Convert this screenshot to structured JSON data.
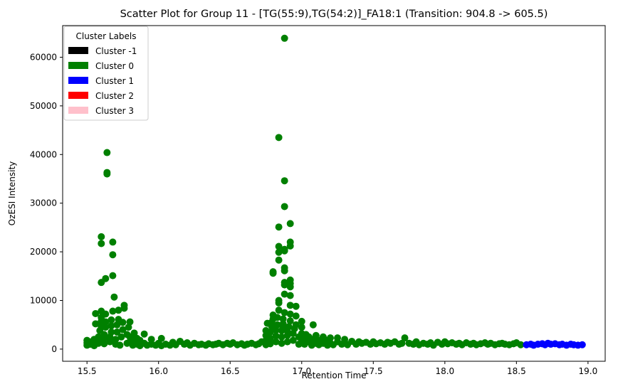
{
  "chart_data": {
    "type": "scatter",
    "title": "Scatter Plot for Group 11 - [TG(55:9),TG(54:2)]_FA18:1 (Transition: 904.8 -> 605.5)",
    "xlabel": "Retention Time",
    "ylabel": "OzESI Intensity",
    "xlim": [
      15.33,
      19.12
    ],
    "ylim": [
      -2500,
      66500
    ],
    "xticks": [
      15.5,
      16.0,
      16.5,
      17.0,
      17.5,
      18.0,
      18.5,
      19.0
    ],
    "xtick_labels": [
      "15.5",
      "16.0",
      "16.5",
      "17.0",
      "17.5",
      "18.0",
      "18.5",
      "19.0"
    ],
    "yticks": [
      0,
      10000,
      20000,
      30000,
      40000,
      50000,
      60000
    ],
    "ytick_labels": [
      "0",
      "10000",
      "20000",
      "30000",
      "40000",
      "50000",
      "60000"
    ],
    "grid": false,
    "legend": {
      "title": "Cluster Labels",
      "placement": "top-left",
      "entries": [
        {
          "label": "Cluster -1",
          "color": "#000000"
        },
        {
          "label": "Cluster 0",
          "color": "#008000"
        },
        {
          "label": "Cluster 1",
          "color": "#0000ff"
        },
        {
          "label": "Cluster 2",
          "color": "#ff0000"
        },
        {
          "label": "Cluster 3",
          "color": "#ffc0cb"
        }
      ]
    },
    "series": [
      {
        "name": "Cluster 0",
        "color": "#008000",
        "points": [
          [
            15.5,
            800
          ],
          [
            15.5,
            1300
          ],
          [
            15.5,
            1800
          ],
          [
            15.52,
            1000
          ],
          [
            15.53,
            1500
          ],
          [
            15.55,
            700
          ],
          [
            15.55,
            1100
          ],
          [
            15.55,
            2000
          ],
          [
            15.56,
            5200
          ],
          [
            15.56,
            7300
          ],
          [
            15.58,
            1200
          ],
          [
            15.58,
            2500
          ],
          [
            15.59,
            3800
          ],
          [
            15.6,
            1800
          ],
          [
            15.6,
            4600
          ],
          [
            15.6,
            5700
          ],
          [
            15.6,
            6500
          ],
          [
            15.6,
            7800
          ],
          [
            15.6,
            13700
          ],
          [
            15.6,
            21700
          ],
          [
            15.6,
            23100
          ],
          [
            15.62,
            1100
          ],
          [
            15.62,
            2200
          ],
          [
            15.62,
            3000
          ],
          [
            15.63,
            4500
          ],
          [
            15.63,
            5600
          ],
          [
            15.63,
            7200
          ],
          [
            15.63,
            14500
          ],
          [
            15.64,
            36300
          ],
          [
            15.64,
            36000
          ],
          [
            15.64,
            40400
          ],
          [
            15.66,
            1500
          ],
          [
            15.66,
            2500
          ],
          [
            15.67,
            3500
          ],
          [
            15.67,
            4800
          ],
          [
            15.67,
            6000
          ],
          [
            15.68,
            7800
          ],
          [
            15.68,
            15100
          ],
          [
            15.68,
            19400
          ],
          [
            15.68,
            22000
          ],
          [
            15.69,
            10700
          ],
          [
            15.7,
            1000
          ],
          [
            15.7,
            2000
          ],
          [
            15.71,
            3500
          ],
          [
            15.71,
            5000
          ],
          [
            15.72,
            6100
          ],
          [
            15.72,
            8000
          ],
          [
            15.73,
            800
          ],
          [
            15.74,
            2500
          ],
          [
            15.75,
            4000
          ],
          [
            15.75,
            5500
          ],
          [
            15.76,
            8400
          ],
          [
            15.76,
            9000
          ],
          [
            15.78,
            1200
          ],
          [
            15.78,
            3000
          ],
          [
            15.79,
            4500
          ],
          [
            15.8,
            1500
          ],
          [
            15.8,
            2500
          ],
          [
            15.8,
            5600
          ],
          [
            15.82,
            800
          ],
          [
            15.82,
            2000
          ],
          [
            15.83,
            3300
          ],
          [
            15.85,
            1000
          ],
          [
            15.85,
            2200
          ],
          [
            15.87,
            700
          ],
          [
            15.87,
            1800
          ],
          [
            15.9,
            1200
          ],
          [
            15.9,
            3100
          ],
          [
            15.92,
            800
          ],
          [
            15.95,
            1000
          ],
          [
            15.95,
            2000
          ],
          [
            15.98,
            800
          ],
          [
            16.0,
            1200
          ],
          [
            16.02,
            700
          ],
          [
            16.02,
            2200
          ],
          [
            16.05,
            1000
          ],
          [
            16.08,
            800
          ],
          [
            16.1,
            1400
          ],
          [
            16.12,
            900
          ],
          [
            16.15,
            1600
          ],
          [
            16.18,
            1000
          ],
          [
            16.2,
            1300
          ],
          [
            16.22,
            800
          ],
          [
            16.25,
            1200
          ],
          [
            16.28,
            900
          ],
          [
            16.3,
            1000
          ],
          [
            16.33,
            800
          ],
          [
            16.35,
            1100
          ],
          [
            16.38,
            900
          ],
          [
            16.4,
            1000
          ],
          [
            16.42,
            1200
          ],
          [
            16.45,
            900
          ],
          [
            16.48,
            1200
          ],
          [
            16.5,
            1000
          ],
          [
            16.52,
            1300
          ],
          [
            16.55,
            900
          ],
          [
            16.58,
            1100
          ],
          [
            16.6,
            800
          ],
          [
            16.62,
            1000
          ],
          [
            16.65,
            1200
          ],
          [
            16.68,
            900
          ],
          [
            16.7,
            1100
          ],
          [
            16.72,
            1500
          ],
          [
            16.75,
            900
          ],
          [
            16.75,
            1800
          ],
          [
            16.75,
            2800
          ],
          [
            16.75,
            3800
          ],
          [
            16.76,
            5300
          ],
          [
            16.78,
            1100
          ],
          [
            16.78,
            2200
          ],
          [
            16.78,
            3500
          ],
          [
            16.79,
            4700
          ],
          [
            16.79,
            5500
          ],
          [
            16.8,
            15600
          ],
          [
            16.8,
            15900
          ],
          [
            16.8,
            6200
          ],
          [
            16.8,
            7000
          ],
          [
            16.82,
            1500
          ],
          [
            16.82,
            2700
          ],
          [
            16.82,
            3900
          ],
          [
            16.83,
            5000
          ],
          [
            16.83,
            6500
          ],
          [
            16.84,
            8000
          ],
          [
            16.84,
            9500
          ],
          [
            16.84,
            10000
          ],
          [
            16.84,
            18300
          ],
          [
            16.84,
            19900
          ],
          [
            16.84,
            21100
          ],
          [
            16.84,
            25100
          ],
          [
            16.84,
            43500
          ],
          [
            16.86,
            1200
          ],
          [
            16.86,
            2500
          ],
          [
            16.86,
            3800
          ],
          [
            16.87,
            4500
          ],
          [
            16.87,
            5200
          ],
          [
            16.87,
            6200
          ],
          [
            16.88,
            7500
          ],
          [
            16.88,
            11300
          ],
          [
            16.88,
            13200
          ],
          [
            16.88,
            13700
          ],
          [
            16.88,
            16100
          ],
          [
            16.88,
            16700
          ],
          [
            16.88,
            20200
          ],
          [
            16.88,
            20500
          ],
          [
            16.88,
            29300
          ],
          [
            16.88,
            34600
          ],
          [
            16.88,
            63900
          ],
          [
            16.9,
            1500
          ],
          [
            16.9,
            2800
          ],
          [
            16.9,
            3700
          ],
          [
            16.91,
            4600
          ],
          [
            16.92,
            5800
          ],
          [
            16.92,
            7200
          ],
          [
            16.92,
            9000
          ],
          [
            16.92,
            11000
          ],
          [
            16.92,
            12800
          ],
          [
            16.92,
            13500
          ],
          [
            16.92,
            14200
          ],
          [
            16.92,
            21200
          ],
          [
            16.92,
            22000
          ],
          [
            16.92,
            25800
          ],
          [
            16.94,
            1800
          ],
          [
            16.94,
            3200
          ],
          [
            16.95,
            4200
          ],
          [
            16.96,
            5000
          ],
          [
            16.96,
            6800
          ],
          [
            16.96,
            8800
          ],
          [
            16.98,
            1000
          ],
          [
            16.98,
            2500
          ],
          [
            17.0,
            1500
          ],
          [
            17.0,
            3200
          ],
          [
            17.0,
            4500
          ],
          [
            17.0,
            5700
          ],
          [
            17.02,
            1000
          ],
          [
            17.02,
            2000
          ],
          [
            17.03,
            3000
          ],
          [
            17.05,
            1500
          ],
          [
            17.05,
            2500
          ],
          [
            17.07,
            800
          ],
          [
            17.08,
            2000
          ],
          [
            17.08,
            5000
          ],
          [
            17.1,
            1200
          ],
          [
            17.1,
            2800
          ],
          [
            17.12,
            900
          ],
          [
            17.12,
            1800
          ],
          [
            17.15,
            1200
          ],
          [
            17.15,
            2500
          ],
          [
            17.18,
            800
          ],
          [
            17.18,
            1800
          ],
          [
            17.2,
            1200
          ],
          [
            17.2,
            2300
          ],
          [
            17.22,
            900
          ],
          [
            17.25,
            1500
          ],
          [
            17.25,
            2300
          ],
          [
            17.28,
            1000
          ],
          [
            17.3,
            1400
          ],
          [
            17.3,
            2000
          ],
          [
            17.32,
            900
          ],
          [
            17.35,
            1600
          ],
          [
            17.38,
            1000
          ],
          [
            17.4,
            1500
          ],
          [
            17.42,
            1200
          ],
          [
            17.45,
            1400
          ],
          [
            17.48,
            1000
          ],
          [
            17.5,
            1500
          ],
          [
            17.52,
            1100
          ],
          [
            17.55,
            1300
          ],
          [
            17.58,
            1000
          ],
          [
            17.6,
            1400
          ],
          [
            17.62,
            1200
          ],
          [
            17.65,
            1500
          ],
          [
            17.68,
            1000
          ],
          [
            17.7,
            1200
          ],
          [
            17.72,
            2300
          ],
          [
            17.75,
            1200
          ],
          [
            17.78,
            1000
          ],
          [
            17.8,
            1500
          ],
          [
            17.82,
            900
          ],
          [
            17.85,
            1200
          ],
          [
            17.88,
            1000
          ],
          [
            17.9,
            1300
          ],
          [
            17.92,
            800
          ],
          [
            17.95,
            1400
          ],
          [
            17.98,
            1000
          ],
          [
            18.0,
            1500
          ],
          [
            18.02,
            1100
          ],
          [
            18.05,
            1300
          ],
          [
            18.08,
            1000
          ],
          [
            18.1,
            1200
          ],
          [
            18.12,
            900
          ],
          [
            18.15,
            1300
          ],
          [
            18.18,
            1000
          ],
          [
            18.2,
            1200
          ],
          [
            18.22,
            900
          ],
          [
            18.25,
            1100
          ],
          [
            18.28,
            1300
          ],
          [
            18.3,
            1000
          ],
          [
            18.32,
            1200
          ],
          [
            18.35,
            900
          ],
          [
            18.38,
            1100
          ],
          [
            18.4,
            1200
          ],
          [
            18.42,
            1000
          ],
          [
            18.45,
            900
          ],
          [
            18.48,
            1100
          ],
          [
            18.5,
            1300
          ],
          [
            18.53,
            900
          ]
        ]
      },
      {
        "name": "Cluster 1",
        "color": "#0000ff",
        "points": [
          [
            18.57,
            900
          ],
          [
            18.6,
            1000
          ],
          [
            18.62,
            800
          ],
          [
            18.65,
            1000
          ],
          [
            18.68,
            1100
          ],
          [
            18.7,
            900
          ],
          [
            18.72,
            1200
          ],
          [
            18.74,
            1000
          ],
          [
            18.77,
            1100
          ],
          [
            18.8,
            900
          ],
          [
            18.82,
            1000
          ],
          [
            18.85,
            800
          ],
          [
            18.88,
            1000
          ],
          [
            18.9,
            900
          ],
          [
            18.93,
            800
          ],
          [
            18.96,
            900
          ]
        ]
      }
    ]
  }
}
